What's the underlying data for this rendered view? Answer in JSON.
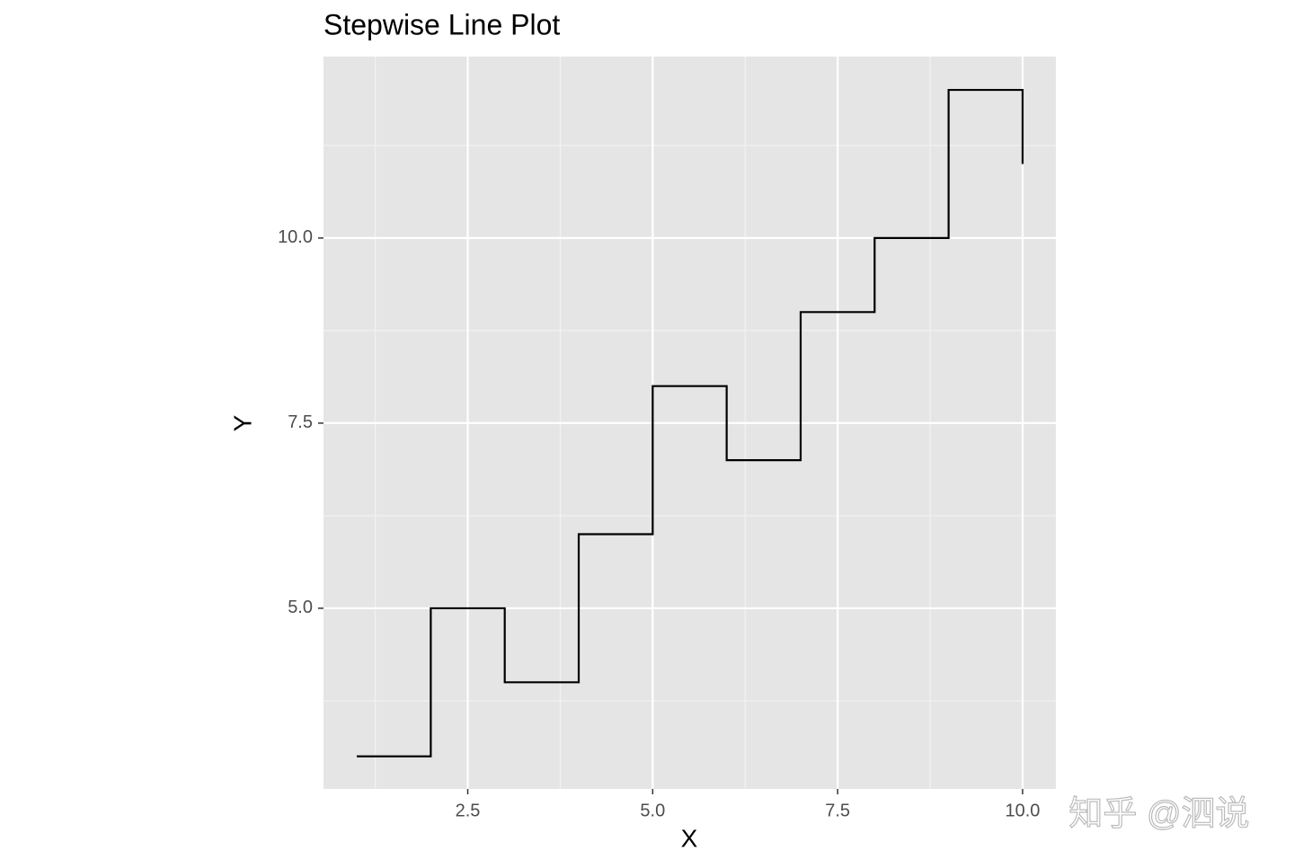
{
  "chart_data": {
    "type": "line",
    "step": "hv",
    "title": "Stepwise Line Plot",
    "x_label": "X",
    "y_label": "Y",
    "x": [
      1,
      2,
      3,
      4,
      5,
      6,
      7,
      8,
      9,
      10
    ],
    "values": [
      3,
      5,
      4,
      6,
      8,
      7,
      9,
      10,
      12,
      11
    ],
    "color": "#000000",
    "xlim": [
      0.55,
      10.45
    ],
    "xticks": [
      2.5,
      {
        "value": 5,
        "label": "5.0"
      },
      7.5,
      {
        "value": 10,
        "label": "10.0"
      }
    ],
    "ylim": [
      2.56,
      12.45
    ],
    "yticks": [
      {
        "value": 5,
        "label": "5.0"
      },
      7.5,
      {
        "value": 10,
        "label": "10.0"
      }
    ],
    "grid": true,
    "minor_grid": true,
    "watermark": "知乎 @泗说"
  }
}
